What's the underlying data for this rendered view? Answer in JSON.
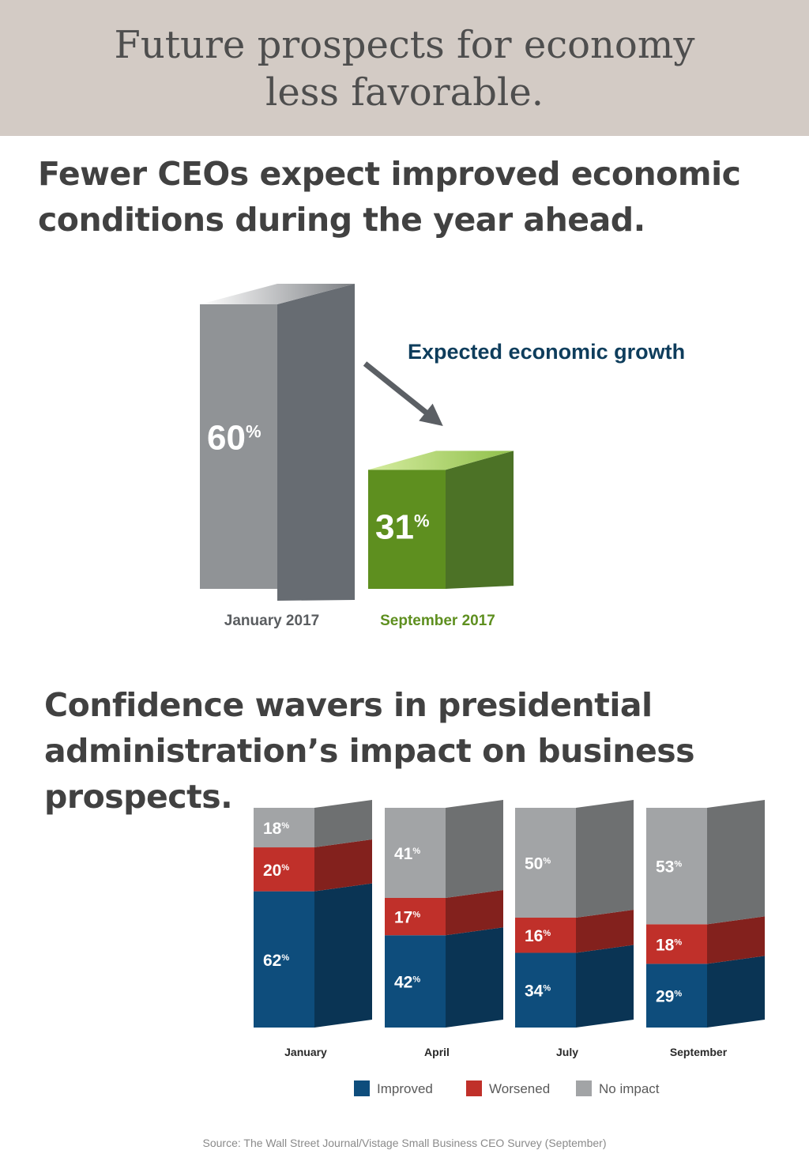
{
  "banner": {
    "line1": "Future prospects for economy",
    "line2": "less favorable."
  },
  "section1": {
    "heading_line1": "Fewer CEOs expect improved economic",
    "heading_line2": "conditions during the year ahead."
  },
  "section2": {
    "heading_line1": "Confidence wavers in presidential",
    "heading_line2": "administration’s impact on business",
    "heading_line3": "prospects."
  },
  "colors": {
    "improved": "#0e4d7c",
    "worsened": "#c0302a",
    "no_impact": "#a2a4a6",
    "growth_green": "#5c8e1f",
    "gray_bar": "#9a9c9e",
    "title_blue": "#0e3d5c"
  },
  "chart_data": [
    {
      "type": "bar",
      "title": "Expected economic growth",
      "categories": [
        "January 2017",
        "September 2017"
      ],
      "values": [
        60,
        31
      ],
      "value_labels": [
        "60",
        "31"
      ],
      "unit": "%",
      "annotations": [
        "arrow-down-from-January-to-September"
      ]
    },
    {
      "type": "bar",
      "stacked": true,
      "categories": [
        "January",
        "April",
        "July",
        "September"
      ],
      "series": [
        {
          "name": "Improved",
          "values": [
            62,
            42,
            34,
            29
          ]
        },
        {
          "name": "Worsened",
          "values": [
            20,
            17,
            16,
            18
          ]
        },
        {
          "name": "No impact",
          "values": [
            18,
            41,
            50,
            53
          ]
        }
      ],
      "unit": "%",
      "legend": "bottom-center"
    }
  ],
  "source": "Source: The Wall Street Journal/Vistage Small Business CEO Survey (September)"
}
